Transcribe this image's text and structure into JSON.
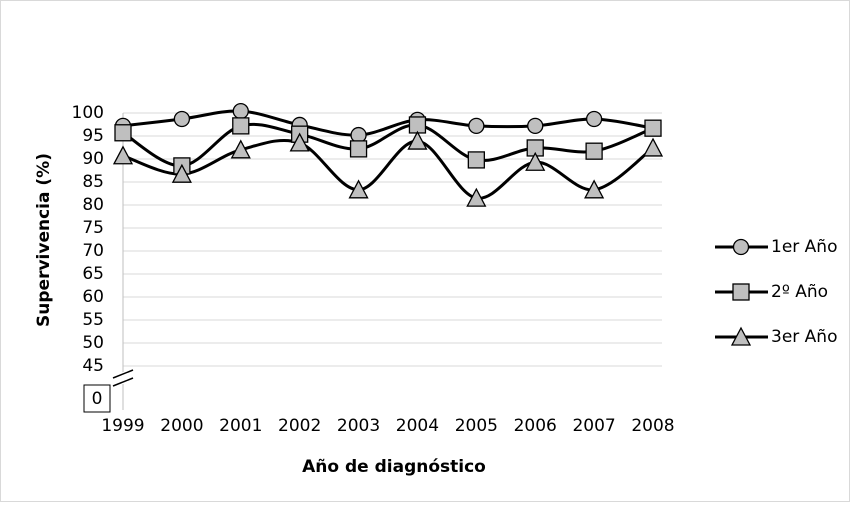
{
  "chart_data": {
    "type": "line",
    "x_label": "Año de diagnóstico",
    "y_label": "Supervivencia (%)",
    "categories": [
      "1999",
      "2000",
      "2001",
      "2002",
      "2003",
      "2004",
      "2005",
      "2006",
      "2007",
      "2008"
    ],
    "series": [
      {
        "name": "1er Año",
        "color": "#000000",
        "marker": "circle",
        "values": [
          97.2,
          98.7,
          100.4,
          97.4,
          95.2,
          98.5,
          97.2,
          97.2,
          98.7,
          96.7
        ]
      },
      {
        "name": "2º Año",
        "color": "#000000",
        "marker": "square",
        "values": [
          95.7,
          88.5,
          97.2,
          95.4,
          92.2,
          97.4,
          89.8,
          92.4,
          91.7,
          96.7
        ]
      },
      {
        "name": "3er Año",
        "color": "#000000",
        "marker": "triangle",
        "values": [
          90.7,
          86.7,
          92.0,
          93.5,
          83.3,
          93.9,
          81.5,
          89.3,
          83.3,
          92.4
        ]
      }
    ],
    "ylim": [
      45,
      100
    ],
    "yticks": [
      45,
      50,
      55,
      60,
      65,
      70,
      75,
      80,
      85,
      90,
      95,
      100
    ],
    "axis_break_tick": 0,
    "grid": true,
    "legend": "right"
  }
}
